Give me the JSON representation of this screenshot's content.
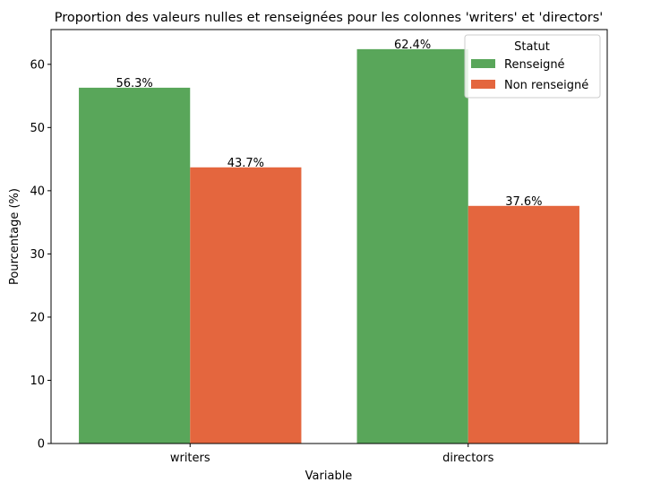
{
  "chart_data": {
    "type": "bar",
    "title": "Proportion des valeurs nulles et renseignées pour les colonnes 'writers' et 'directors'",
    "xlabel": "Variable",
    "ylabel": "Pourcentage (%)",
    "categories": [
      "writers",
      "directors"
    ],
    "series": [
      {
        "name": "Renseigné",
        "values": [
          56.3,
          62.4
        ],
        "color": "#59a65a",
        "labels": [
          "56.3%",
          "62.4%"
        ]
      },
      {
        "name": "Non renseigné",
        "values": [
          43.7,
          37.6
        ],
        "color": "#e4663e",
        "labels": [
          "43.7%",
          "37.6%"
        ]
      }
    ],
    "ylim": [
      0,
      65.5
    ],
    "yticks": [
      0,
      10,
      20,
      30,
      40,
      50,
      60
    ],
    "grid": false,
    "legend": {
      "title": "Statut",
      "placement": "top-right"
    }
  }
}
